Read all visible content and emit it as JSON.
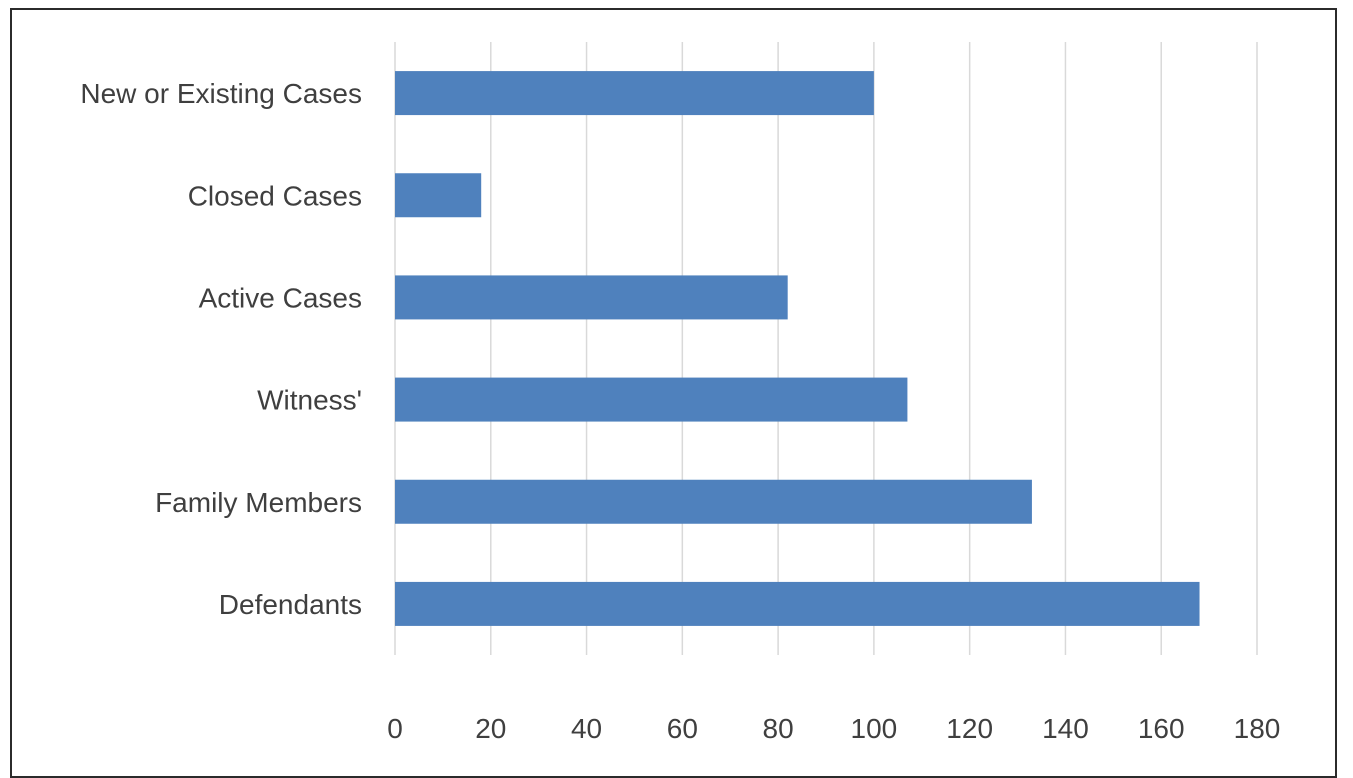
{
  "chart_data": {
    "type": "bar",
    "orientation": "horizontal",
    "title": "",
    "xlabel": "",
    "ylabel": "",
    "categories": [
      "New or Existing Cases",
      "Closed Cases",
      "Active Cases",
      "Witness'",
      "Family Members",
      "Defendants"
    ],
    "values": [
      100,
      18,
      82,
      107,
      133,
      168
    ],
    "xlim": [
      0,
      180
    ],
    "x_ticks": [
      0,
      20,
      40,
      60,
      80,
      100,
      120,
      140,
      160,
      180
    ],
    "grid": "vertical",
    "legend": "none",
    "bar_color": "#4f81bd"
  }
}
